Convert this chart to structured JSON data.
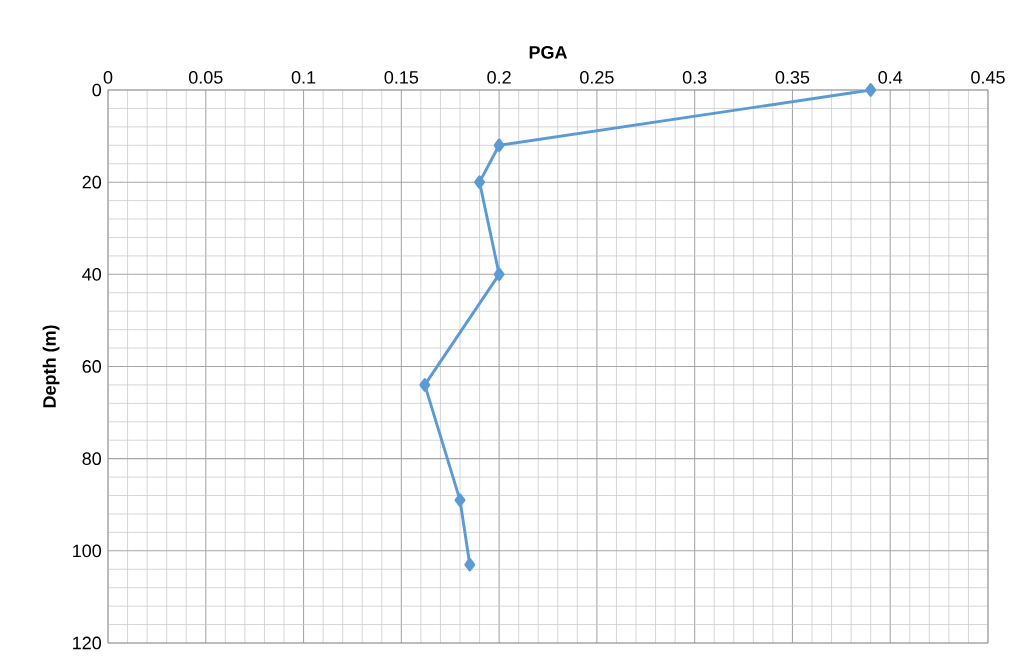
{
  "chart_data": {
    "type": "line",
    "xlabel": "PGA",
    "ylabel": "Depth (m)",
    "x": [
      0.39,
      0.2,
      0.19,
      0.2,
      0.162,
      0.18,
      0.185
    ],
    "series": [
      {
        "color": "#5b9bd5",
        "values": [
          0,
          12,
          20,
          40,
          64,
          89,
          103
        ]
      }
    ],
    "xlim": [
      0,
      0.45
    ],
    "xticks": [
      0,
      0.05,
      0.1,
      0.15,
      0.2,
      0.25,
      0.3,
      0.35,
      0.4,
      0.45
    ],
    "ylim": [
      120,
      0
    ],
    "yticks": [
      0,
      20,
      40,
      60,
      80,
      100,
      120
    ],
    "grid": true,
    "marker": "diamond",
    "line_style": "solid"
  }
}
